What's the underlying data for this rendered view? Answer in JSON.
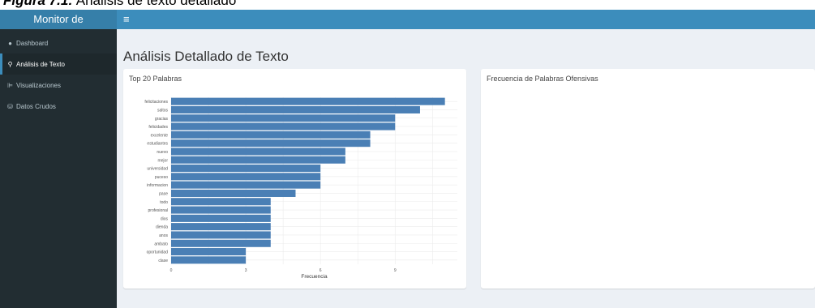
{
  "caption": {
    "label": "Figura 7.1:",
    "text": "Análisis de texto detallado"
  },
  "header": {
    "logo": "Monitor de",
    "menu_icon": "≡"
  },
  "sidebar": {
    "items": [
      {
        "label": "Dashboard",
        "icon": "dashboard-icon",
        "glyph": "●"
      },
      {
        "label": "Análisis de Texto",
        "icon": "search-icon",
        "glyph": "⚲"
      },
      {
        "label": "Visualizaciones",
        "icon": "chart-icon",
        "glyph": "⊫"
      },
      {
        "label": "Datos Crudos",
        "icon": "database-icon",
        "glyph": "⛁"
      }
    ]
  },
  "main": {
    "title": "Análisis Detallado de Texto",
    "left_box_title": "Top 20 Palabras",
    "right_box_title": "Frecuencia de Palabras Ofensivas"
  },
  "colors": {
    "bar": "#4a7fb5",
    "navbar": "#3c8dbc",
    "logo_bg": "#367fa9",
    "sidebar_bg": "#222d32"
  },
  "chart_data": {
    "type": "bar",
    "orientation": "horizontal",
    "categories": [
      "felicitaciones",
      "saltos",
      "gracias",
      "felicidades",
      "excelente",
      "estudiantes",
      "nuevo",
      "mejor",
      "universidad",
      "puceso",
      "informacion",
      "pase",
      "todo",
      "profesional",
      "dios",
      "dienda",
      "anos",
      "ambato",
      "oportunidad",
      "clase"
    ],
    "values": [
      11,
      10,
      9,
      9,
      8,
      8,
      7,
      7,
      6,
      6,
      6,
      5,
      4,
      4,
      4,
      4,
      4,
      4,
      3,
      3
    ],
    "xlabel": "Frecuencia",
    "ylabel": "",
    "xlim": [
      0,
      11.5
    ],
    "xticks": [
      0,
      3,
      6,
      9
    ],
    "grid": true
  }
}
